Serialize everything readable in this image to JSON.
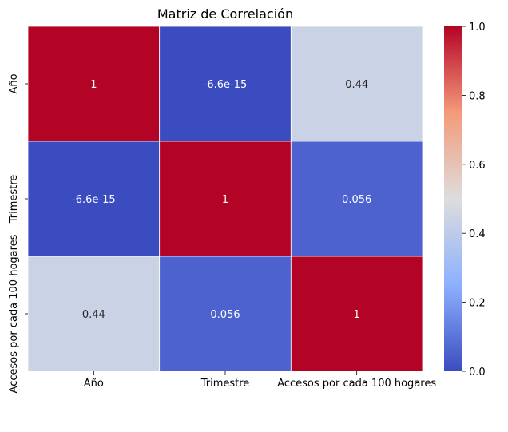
{
  "chart_data": {
    "type": "heatmap",
    "title": "Matriz de Correlación",
    "rows": [
      "Año",
      "Trimestre",
      "Accesos por cada 100 hogares"
    ],
    "columns": [
      "Año",
      "Trimestre",
      "Accesos por cada 100 hogares"
    ],
    "values": [
      [
        1,
        -6.6e-15,
        0.44
      ],
      [
        -6.6e-15,
        1,
        0.056
      ],
      [
        0.44,
        0.056,
        1
      ]
    ],
    "annotations": [
      [
        "1",
        "-6.6e-15",
        "0.44"
      ],
      [
        "-6.6e-15",
        "1",
        "0.056"
      ],
      [
        "0.44",
        "0.056",
        "1"
      ]
    ],
    "colormap": "coolwarm",
    "colorbar": {
      "min": 0.0,
      "max": 1.0,
      "ticks": [
        "0.0",
        "0.2",
        "0.4",
        "0.6",
        "0.8",
        "1.0"
      ]
    },
    "grid": false
  }
}
